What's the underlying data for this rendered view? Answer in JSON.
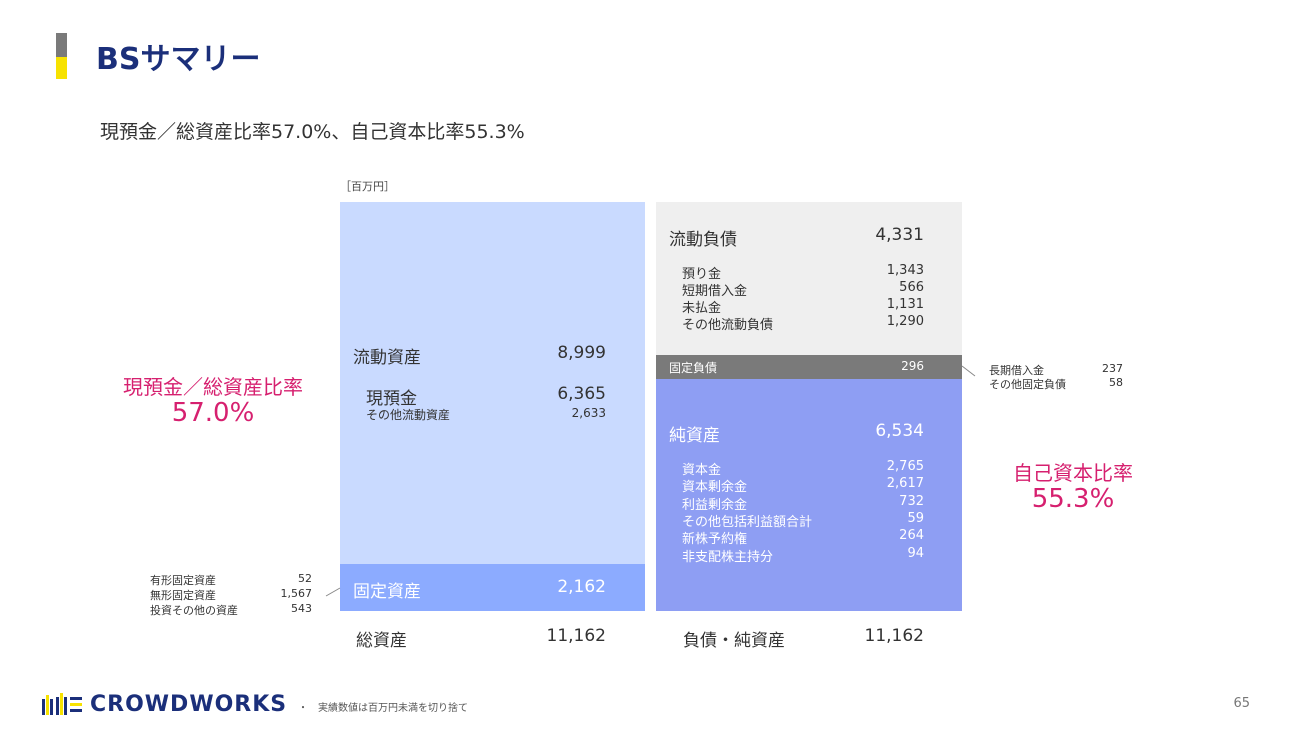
{
  "header": {
    "title": "BSサマリー"
  },
  "subtitle": "現預金／総資産比率57.0%、自己資本比率55.3%",
  "unit": "［百万円］",
  "assets": {
    "current": {
      "label": "流動資産",
      "value": "8,999",
      "items": [
        {
          "label": "現預金",
          "value": "6,365"
        },
        {
          "label": "その他流動資産",
          "value": "2,633"
        }
      ]
    },
    "fixed": {
      "label": "固定資産",
      "value": "2,162",
      "items": [
        {
          "label": "有形固定資産",
          "value": "52"
        },
        {
          "label": "無形固定資産",
          "value": "1,567"
        },
        {
          "label": "投資その他の資産",
          "value": "543"
        }
      ]
    },
    "total": {
      "label": "総資産",
      "value": "11,162"
    }
  },
  "liabilities": {
    "current": {
      "label": "流動負債",
      "value": "4,331",
      "items": [
        {
          "label": "預り金",
          "value": "1,343"
        },
        {
          "label": "短期借入金",
          "value": "566"
        },
        {
          "label": "未払金",
          "value": "1,131"
        },
        {
          "label": "その他流動負債",
          "value": "1,290"
        }
      ]
    },
    "fixed": {
      "label": "固定負債",
      "value": "296",
      "items": [
        {
          "label": "長期借入金",
          "value": "237"
        },
        {
          "label": "その他固定負債",
          "value": "58"
        }
      ]
    },
    "net_assets": {
      "label": "純資産",
      "value": "6,534",
      "items": [
        {
          "label": "資本金",
          "value": "2,765"
        },
        {
          "label": "資本剰余金",
          "value": "2,617"
        },
        {
          "label": "利益剰余金",
          "value": "732"
        },
        {
          "label": "その他包括利益額合計",
          "value": "59"
        },
        {
          "label": "新株予約権",
          "value": "264"
        },
        {
          "label": "非支配株主持分",
          "value": "94"
        }
      ]
    },
    "total": {
      "label": "負債・純資産",
      "value": "11,162"
    }
  },
  "ratios": {
    "cash": {
      "label": "現預金／総資産比率",
      "value": "57.0%"
    },
    "equity": {
      "label": "自己資本比率",
      "value": "55.3%"
    }
  },
  "footer": {
    "note": "実績数値は百万円未満を切り捨て",
    "page": "65",
    "logo_text": "CROWDWORKS"
  },
  "colors": {
    "title": "#1b2f7a",
    "accent_pink": "#d6206f",
    "current_assets": "#c9daff",
    "fixed_assets": "#8cabff",
    "current_liabilities": "#efefef",
    "fixed_liabilities": "#7a7a7a",
    "net_assets": "#8e9ef3",
    "brand_yellow": "#f7e200"
  }
}
